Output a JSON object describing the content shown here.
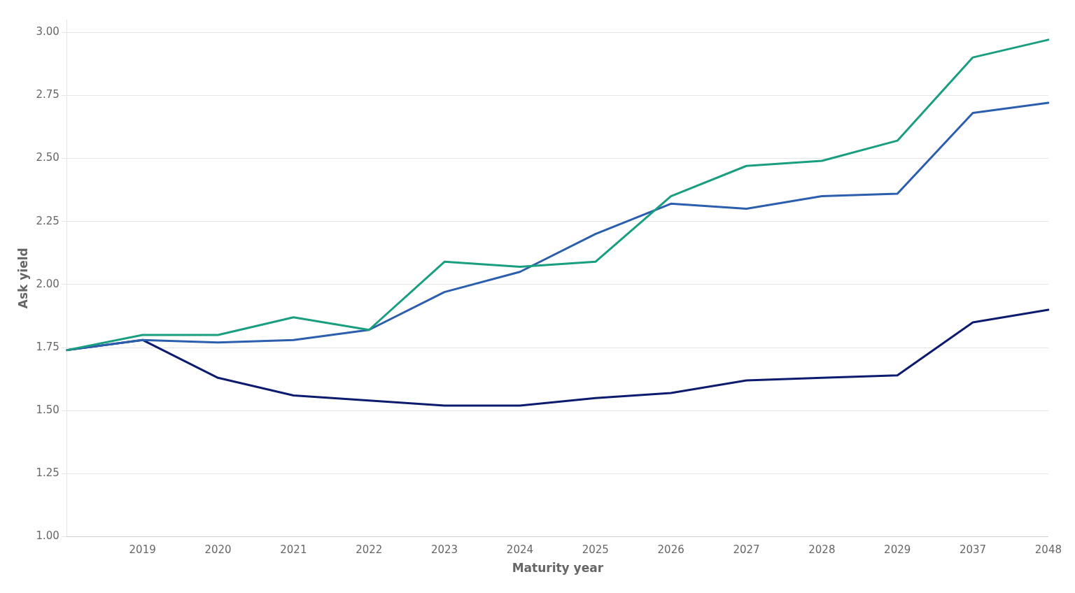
{
  "chart_data": {
    "type": "line",
    "xlabel": "Maturity year",
    "ylabel": "Ask yield",
    "categories": [
      null,
      "2019",
      "2020",
      "2021",
      "2022",
      "2023",
      "2024",
      "2025",
      "2026",
      "2027",
      "2028",
      "2029",
      "2037",
      "2048"
    ],
    "series": [
      {
        "color": "#0d1b6e",
        "values": [
          1.74,
          1.78,
          1.63,
          1.56,
          1.54,
          1.52,
          1.52,
          1.55,
          1.57,
          1.62,
          1.63,
          1.64,
          1.85,
          1.9
        ]
      },
      {
        "color": "#2b5fad",
        "values": [
          1.74,
          1.78,
          1.77,
          1.78,
          1.82,
          1.97,
          2.05,
          2.2,
          2.32,
          2.3,
          2.35,
          2.36,
          2.68,
          2.72
        ]
      },
      {
        "color": "#1a9e80",
        "values": [
          1.74,
          1.8,
          1.8,
          1.87,
          1.82,
          2.09,
          2.07,
          2.09,
          2.35,
          2.47,
          2.49,
          2.57,
          2.9,
          2.97
        ]
      }
    ],
    "ylim": [
      1.0,
      3.05
    ],
    "yticks": [
      {
        "value": 1.0,
        "label": "1.00"
      },
      {
        "value": 1.25,
        "label": "1.25"
      },
      {
        "value": 1.5,
        "label": "1.50"
      },
      {
        "value": 1.75,
        "label": "1.75"
      },
      {
        "value": 2.0,
        "label": "2.00"
      },
      {
        "value": 2.25,
        "label": "2.25"
      },
      {
        "value": 2.5,
        "label": "2.50"
      },
      {
        "value": 2.75,
        "label": "2.75"
      },
      {
        "value": 3.0,
        "label": "3.00"
      }
    ],
    "grid": true
  }
}
